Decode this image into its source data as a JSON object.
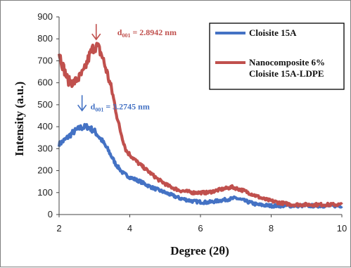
{
  "chart_data": {
    "type": "line",
    "xlabel": "Degree (2θ)",
    "ylabel": "Intensity (a.u.)",
    "xlim": [
      2,
      10
    ],
    "ylim": [
      0,
      900
    ],
    "xticks": [
      2,
      4,
      6,
      8,
      10
    ],
    "yticks": [
      0,
      100,
      200,
      300,
      400,
      500,
      600,
      700,
      800,
      900
    ],
    "grid": false,
    "legend_position": "top-right",
    "series": [
      {
        "name": "Cloisite 15A",
        "color": "#4472c4",
        "x": [
          2.0,
          2.2,
          2.4,
          2.6,
          2.8,
          3.0,
          3.2,
          3.4,
          3.6,
          3.8,
          4.0,
          4.3,
          4.6,
          5.0,
          5.4,
          5.8,
          6.2,
          6.6,
          7.0,
          7.3,
          7.6,
          8.0,
          8.5,
          9.0,
          9.5,
          10.0
        ],
        "y": [
          320,
          345,
          375,
          395,
          400,
          380,
          340,
          290,
          230,
          190,
          170,
          150,
          125,
          100,
          75,
          60,
          55,
          65,
          75,
          60,
          45,
          40,
          40,
          40,
          40,
          40
        ]
      },
      {
        "name": "Nanocomposite 6% Cloisite 15A-LDPE",
        "color": "#c0504d",
        "x": [
          2.0,
          2.1,
          2.25,
          2.4,
          2.55,
          2.7,
          2.85,
          3.0,
          3.1,
          3.2,
          3.35,
          3.5,
          3.7,
          3.9,
          4.2,
          4.5,
          4.8,
          5.1,
          5.4,
          5.8,
          6.2,
          6.6,
          6.9,
          7.2,
          7.5,
          7.8,
          8.2,
          8.6,
          9.0,
          9.5,
          10.0
        ],
        "y": [
          740,
          680,
          610,
          600,
          620,
          650,
          720,
          770,
          760,
          730,
          650,
          560,
          400,
          290,
          240,
          200,
          160,
          130,
          110,
          100,
          100,
          115,
          125,
          110,
          90,
          70,
          55,
          45,
          45,
          45,
          45
        ]
      }
    ],
    "annotations": [
      {
        "sub": "001",
        "series": 0,
        "x": 2.65,
        "text_after": " = 3.2745 nm",
        "color": "#4472c4"
      },
      {
        "sub": "001",
        "series": 1,
        "x": 3.05,
        "text_after": " = 2.8942 nm",
        "color": "#c0504d"
      }
    ],
    "annot_prefix": "d"
  }
}
